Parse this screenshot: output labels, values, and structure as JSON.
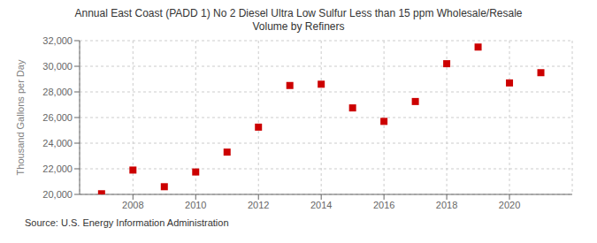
{
  "chart_data": {
    "type": "scatter",
    "title": "Annual East Coast (PADD 1) No 2 Diesel Ultra Low Sulfur Less than 15 ppm Wholesale/Resale",
    "subtitle": "Volume by Refiners",
    "y_label": "Thousand Gallons per Day",
    "annotation": "Source: U.S. Energy Information Administration",
    "x": [
      2007,
      2008,
      2009,
      2010,
      2011,
      2012,
      2013,
      2014,
      2015,
      2016,
      2017,
      2018,
      2019,
      2020,
      2021
    ],
    "values": [
      20050,
      21900,
      20600,
      21750,
      23300,
      25250,
      28500,
      28600,
      26750,
      25700,
      27250,
      30200,
      31500,
      28700,
      29500
    ],
    "color": "#CC0000",
    "marker": "square",
    "xlim": [
      2006.3,
      2022.0
    ],
    "xticks": [
      2008,
      2010,
      2012,
      2014,
      2016,
      2018,
      2020
    ],
    "ylim": [
      20000,
      32000
    ],
    "yticks": [
      {
        "value": 20000,
        "label": "20,000"
      },
      {
        "value": 22000,
        "label": "22,000"
      },
      {
        "value": 24000,
        "label": "24,000"
      },
      {
        "value": 26000,
        "label": "26,000"
      },
      {
        "value": 28000,
        "label": "28,000"
      },
      {
        "value": 30000,
        "label": "30,000"
      },
      {
        "value": 32000,
        "label": "32,000"
      }
    ],
    "grid": true
  }
}
